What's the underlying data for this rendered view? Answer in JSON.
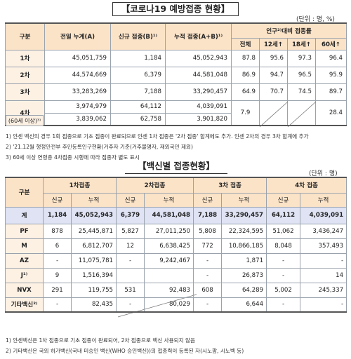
{
  "section1": {
    "title": "【코로나19 예방접종 현황】",
    "unit": "(단위 : 명, %)",
    "headers": {
      "category": "구분",
      "prev_total": "전일 누계(A)",
      "new": "신규 접종(B)¹⁾",
      "cum_total": "누적 접종(A+B)¹⁾",
      "pop_rate": "인구²⁾대비 접종률",
      "all": "전체",
      "age12": "12세↑",
      "age18": "18세↑",
      "age60": "60세↑"
    },
    "rows": [
      {
        "label": "1차",
        "prev": "45,051,759",
        "new": "1,184",
        "cum": "45,052,943",
        "all": "87.8",
        "a12": "95.6",
        "a18": "97.3",
        "a60": "96.4"
      },
      {
        "label": "2차",
        "prev": "44,574,669",
        "new": "6,379",
        "cum": "44,581,048",
        "all": "86.9",
        "a12": "94.7",
        "a18": "96.5",
        "a60": "95.9"
      },
      {
        "label": "3차",
        "prev": "33,283,269",
        "new": "7,188",
        "cum": "33,290,457",
        "all": "64.9",
        "a12": "70.7",
        "a18": "74.5",
        "a60": "89.7"
      },
      {
        "label": "4차",
        "prev": "3,974,979",
        "new": "64,112",
        "cum": "4,039,091",
        "all": "7.9",
        "a60": "28.4"
      },
      {
        "label": "(60세 이상)³⁾",
        "prev": "3,839,062",
        "new": "62,758",
        "cum": "3,901,820"
      }
    ],
    "notes": [
      "1) 얀센 백신의 경우 1회 접종으로 기초 접종이 완료되므로 얀센 1차 접종은 '2차 접종' 합계에도 추가. 얀센 2차의 경우 3차 합계에 추가",
      "2) '21.12월 행정안전부 주민등록인구현황(거주자 기준(거주불명자, 재외국민 제외)",
      "3) 60세 이상 연령층 4차접종 시행에 따라 접종자 별도 표시"
    ]
  },
  "section2": {
    "title": "【백신별 접종현황】",
    "unit": "(단위 : 명)",
    "headers": {
      "category": "구분",
      "d1": "1차접종",
      "d2": "2차접종",
      "d3": "3차 접종",
      "d4": "4차 접종",
      "new": "신규",
      "cum": "누적"
    },
    "rows": [
      {
        "label": "계",
        "v": [
          "1,184",
          "45,052,943",
          "6,379",
          "44,581,048",
          "7,188",
          "33,290,457",
          "64,112",
          "4,039,091"
        ]
      },
      {
        "label": "PF",
        "v": [
          "878",
          "25,445,871",
          "5,827",
          "27,011,250",
          "5,808",
          "22,324,595",
          "51,062",
          "3,436,247"
        ]
      },
      {
        "label": "M",
        "v": [
          "6",
          "6,812,707",
          "12",
          "6,638,425",
          "772",
          "10,866,185",
          "8,048",
          "357,493"
        ]
      },
      {
        "label": "AZ",
        "v": [
          "-",
          "11,075,781",
          "-",
          "9,242,467",
          "-",
          "1,871",
          "-",
          "-"
        ]
      },
      {
        "label": "J¹⁾",
        "v": [
          "9",
          "1,516,394",
          "",
          "",
          "-",
          "26,873",
          "-",
          "14"
        ]
      },
      {
        "label": "NVX",
        "v": [
          "291",
          "119,755",
          "531",
          "92,483",
          "608",
          "64,289",
          "5,002",
          "245,337"
        ]
      },
      {
        "label": "기타백신²⁾",
        "v": [
          "-",
          "82,435",
          "-",
          "80,029",
          "-",
          "6,644",
          "-",
          "-"
        ]
      }
    ],
    "notes": [
      "1) 얀센백신은 1차 접종으로 기초 접종이 완료되어, 2차 접종으로 백신 사용되지 않음",
      "2) 기타백신은 국외 허가백신(국내 미승인 백신(WHO 승인백신))의 접종력이 등록된 자(시노팜, 시노벡 등)"
    ]
  }
}
